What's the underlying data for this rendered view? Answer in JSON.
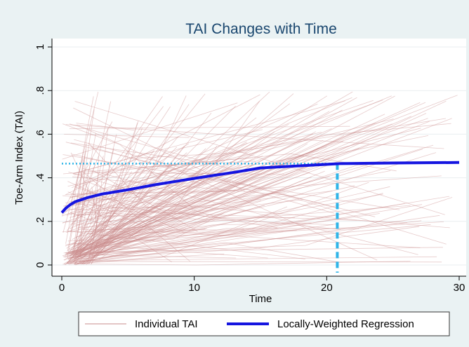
{
  "chart_data": {
    "type": "line",
    "title": "TAI Changes with Time",
    "xlabel": "Time",
    "ylabel": "Toe-Arm Index (TAI)",
    "xlim": [
      0,
      30
    ],
    "ylim": [
      0,
      1
    ],
    "x_ticks": [
      0,
      10,
      20,
      30
    ],
    "x_tick_labels": [
      "0",
      "10",
      "20",
      "30"
    ],
    "y_ticks": [
      0,
      0.2,
      0.4,
      0.6,
      0.8,
      1
    ],
    "y_tick_labels": [
      "0",
      ".2",
      ".4",
      ".6",
      ".8",
      "1"
    ],
    "grid": true,
    "legend_position": "bottom",
    "series": [
      {
        "name": "Individual TAI",
        "color": "#c98b8b",
        "style": "thin-translucent"
      },
      {
        "name": "Locally-Weighted Regression",
        "color": "#1515e0",
        "style": "thick",
        "x": [
          0,
          0.3,
          0.6,
          1,
          1.5,
          2,
          3,
          5,
          7,
          10,
          13,
          15,
          18,
          21,
          25,
          30
        ],
        "y": [
          0.24,
          0.26,
          0.275,
          0.29,
          0.3,
          0.31,
          0.325,
          0.345,
          0.368,
          0.397,
          0.425,
          0.445,
          0.455,
          0.465,
          0.468,
          0.47
        ]
      }
    ],
    "reference_lines": [
      {
        "orientation": "horizontal",
        "value": 0.465,
        "color": "#2fb5e8",
        "style": "dotted"
      },
      {
        "orientation": "vertical",
        "value": 20.8,
        "color": "#2fb5e8",
        "style": "dashed"
      }
    ]
  }
}
